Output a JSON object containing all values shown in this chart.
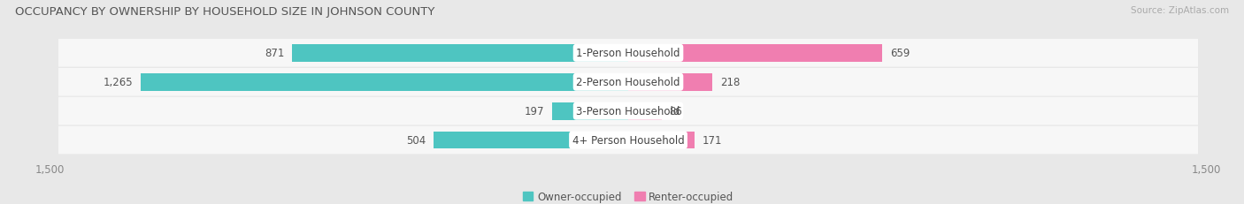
{
  "title": "OCCUPANCY BY OWNERSHIP BY HOUSEHOLD SIZE IN JOHNSON COUNTY",
  "source": "Source: ZipAtlas.com",
  "categories": [
    "1-Person Household",
    "2-Person Household",
    "3-Person Household",
    "4+ Person Household"
  ],
  "owner_values": [
    871,
    1265,
    197,
    504
  ],
  "renter_values": [
    659,
    218,
    86,
    171
  ],
  "owner_color": "#4EC5C1",
  "renter_color": "#F07EB0",
  "max_scale": 1500,
  "bg_color": "#e8e8e8",
  "row_bg_color": "#f7f7f7",
  "title_fontsize": 9.5,
  "source_fontsize": 7.5,
  "bar_label_fontsize": 8.5,
  "axis_label_fontsize": 8.5,
  "legend_fontsize": 8.5
}
